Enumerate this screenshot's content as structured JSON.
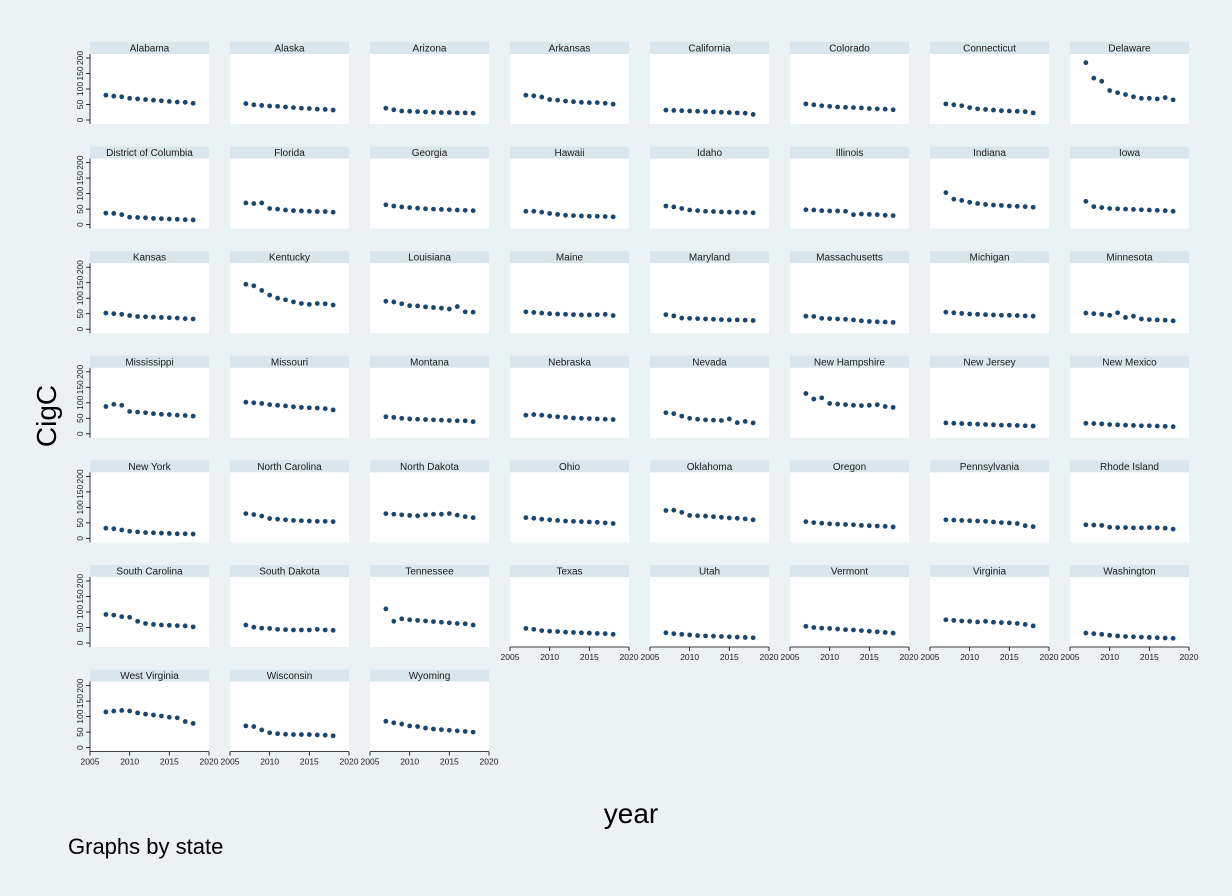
{
  "colors": {
    "background": "#eaf2f3",
    "panel_bg": "#ffffff",
    "title_strip": "#d9e6eb",
    "marker": "#1a476f",
    "axis": "#000000"
  },
  "chart_data": {
    "type": "scatter",
    "layout": "small-multiples",
    "columns": 8,
    "ylabel": "CigC",
    "xlabel": "year",
    "note": "Graphs by state",
    "x": [
      2007,
      2008,
      2009,
      2010,
      2011,
      2012,
      2013,
      2014,
      2015,
      2016,
      2017,
      2018
    ],
    "xlim": [
      2005,
      2020
    ],
    "xticks": [
      2005,
      2010,
      2015,
      2020
    ],
    "ylim": [
      0,
      200
    ],
    "yticks": [
      0,
      50,
      100,
      150,
      200
    ],
    "grid": false,
    "legend": "none",
    "series": [
      {
        "name": "Alabama",
        "values": [
          80,
          77,
          75,
          70,
          68,
          66,
          64,
          62,
          60,
          58,
          57,
          54
        ]
      },
      {
        "name": "Alaska",
        "values": [
          53,
          49,
          47,
          45,
          44,
          42,
          40,
          38,
          37,
          35,
          34,
          32
        ]
      },
      {
        "name": "Arizona",
        "values": [
          38,
          33,
          29,
          28,
          27,
          26,
          25,
          24,
          24,
          23,
          23,
          22
        ]
      },
      {
        "name": "Arkansas",
        "values": [
          80,
          78,
          74,
          66,
          64,
          61,
          59,
          57,
          56,
          56,
          54,
          51
        ]
      },
      {
        "name": "California",
        "values": [
          32,
          31,
          30,
          29,
          28,
          27,
          26,
          25,
          24,
          23,
          22,
          18
        ]
      },
      {
        "name": "Colorado",
        "values": [
          52,
          49,
          46,
          44,
          42,
          41,
          40,
          39,
          37,
          36,
          35,
          33
        ]
      },
      {
        "name": "Connecticut",
        "values": [
          52,
          49,
          46,
          40,
          36,
          34,
          32,
          30,
          29,
          28,
          27,
          23
        ]
      },
      {
        "name": "Delaware",
        "values": [
          185,
          135,
          125,
          95,
          88,
          82,
          75,
          70,
          70,
          68,
          72,
          65
        ]
      },
      {
        "name": "District of Columbia",
        "values": [
          37,
          36,
          32,
          24,
          23,
          22,
          20,
          19,
          18,
          17,
          16,
          15
        ]
      },
      {
        "name": "Florida",
        "values": [
          70,
          68,
          70,
          52,
          50,
          47,
          45,
          44,
          43,
          42,
          42,
          40
        ]
      },
      {
        "name": "Georgia",
        "values": [
          64,
          60,
          57,
          55,
          53,
          51,
          50,
          49,
          48,
          47,
          46,
          45
        ]
      },
      {
        "name": "Hawaii",
        "values": [
          43,
          43,
          40,
          36,
          33,
          30,
          29,
          28,
          27,
          27,
          26,
          25
        ]
      },
      {
        "name": "Idaho",
        "values": [
          60,
          57,
          52,
          47,
          45,
          43,
          42,
          41,
          40,
          40,
          39,
          38
        ]
      },
      {
        "name": "Illinois",
        "values": [
          48,
          47,
          45,
          44,
          44,
          43,
          32,
          34,
          33,
          32,
          30,
          29
        ]
      },
      {
        "name": "Indiana",
        "values": [
          103,
          82,
          78,
          72,
          68,
          65,
          63,
          62,
          60,
          59,
          58,
          56
        ]
      },
      {
        "name": "Iowa",
        "values": [
          75,
          58,
          55,
          52,
          51,
          50,
          49,
          48,
          47,
          46,
          45,
          43
        ]
      },
      {
        "name": "Kansas",
        "values": [
          52,
          50,
          48,
          44,
          41,
          40,
          39,
          38,
          37,
          36,
          34,
          33
        ]
      },
      {
        "name": "Kentucky",
        "values": [
          145,
          140,
          125,
          110,
          100,
          95,
          88,
          83,
          80,
          83,
          82,
          78
        ]
      },
      {
        "name": "Louisiana",
        "values": [
          90,
          88,
          82,
          76,
          75,
          72,
          70,
          68,
          65,
          73,
          56,
          55
        ]
      },
      {
        "name": "Maine",
        "values": [
          56,
          54,
          52,
          50,
          49,
          48,
          47,
          46,
          46,
          47,
          48,
          44
        ]
      },
      {
        "name": "Maryland",
        "values": [
          47,
          43,
          36,
          35,
          34,
          33,
          32,
          31,
          30,
          30,
          29,
          28
        ]
      },
      {
        "name": "Massachusetts",
        "values": [
          42,
          41,
          35,
          34,
          33,
          32,
          30,
          27,
          25,
          24,
          23,
          22
        ]
      },
      {
        "name": "Michigan",
        "values": [
          55,
          53,
          51,
          49,
          48,
          47,
          46,
          45,
          45,
          44,
          43,
          42
        ]
      },
      {
        "name": "Minnesota",
        "values": [
          52,
          50,
          48,
          45,
          53,
          38,
          42,
          33,
          31,
          30,
          29,
          27
        ]
      },
      {
        "name": "Mississippi",
        "values": [
          88,
          95,
          92,
          72,
          70,
          68,
          65,
          63,
          62,
          60,
          59,
          57
        ]
      },
      {
        "name": "Missouri",
        "values": [
          102,
          100,
          98,
          94,
          92,
          90,
          87,
          85,
          84,
          83,
          81,
          77
        ]
      },
      {
        "name": "Montana",
        "values": [
          55,
          53,
          50,
          48,
          47,
          46,
          45,
          44,
          43,
          42,
          42,
          39
        ]
      },
      {
        "name": "Nebraska",
        "values": [
          60,
          62,
          60,
          57,
          55,
          53,
          51,
          50,
          49,
          48,
          47,
          46
        ]
      },
      {
        "name": "Nevada",
        "values": [
          68,
          65,
          57,
          50,
          47,
          45,
          44,
          43,
          48,
          36,
          40,
          35
        ]
      },
      {
        "name": "New Hampshire",
        "values": [
          130,
          112,
          116,
          98,
          96,
          94,
          92,
          91,
          92,
          94,
          88,
          85
        ]
      },
      {
        "name": "New Jersey",
        "values": [
          35,
          34,
          33,
          32,
          31,
          30,
          29,
          28,
          28,
          27,
          26,
          25
        ]
      },
      {
        "name": "New Mexico",
        "values": [
          34,
          33,
          32,
          30,
          29,
          28,
          27,
          26,
          26,
          25,
          24,
          23
        ]
      },
      {
        "name": "New York",
        "values": [
          33,
          31,
          27,
          23,
          21,
          19,
          18,
          17,
          16,
          15,
          15,
          14
        ]
      },
      {
        "name": "North Carolina",
        "values": [
          80,
          77,
          72,
          64,
          62,
          60,
          58,
          57,
          56,
          55,
          55,
          54
        ]
      },
      {
        "name": "North Dakota",
        "values": [
          80,
          78,
          76,
          74,
          73,
          76,
          78,
          78,
          80,
          75,
          70,
          67
        ]
      },
      {
        "name": "Ohio",
        "values": [
          67,
          65,
          62,
          60,
          58,
          56,
          55,
          54,
          53,
          52,
          50,
          48
        ]
      },
      {
        "name": "Oklahoma",
        "values": [
          90,
          91,
          84,
          74,
          73,
          72,
          70,
          68,
          66,
          65,
          63,
          60
        ]
      },
      {
        "name": "Oregon",
        "values": [
          54,
          51,
          49,
          47,
          46,
          45,
          44,
          42,
          41,
          40,
          39,
          37
        ]
      },
      {
        "name": "Pennsylvania",
        "values": [
          60,
          59,
          58,
          57,
          56,
          55,
          53,
          51,
          50,
          48,
          41,
          38
        ]
      },
      {
        "name": "Rhode Island",
        "values": [
          44,
          43,
          42,
          36,
          35,
          35,
          34,
          34,
          35,
          34,
          33,
          30
        ]
      },
      {
        "name": "South Carolina",
        "values": [
          92,
          90,
          85,
          83,
          70,
          63,
          60,
          58,
          57,
          56,
          55,
          52
        ]
      },
      {
        "name": "South Dakota",
        "values": [
          58,
          51,
          48,
          47,
          44,
          43,
          42,
          42,
          42,
          44,
          42,
          41
        ]
      },
      {
        "name": "Tennessee",
        "values": [
          110,
          70,
          78,
          75,
          73,
          71,
          69,
          67,
          65,
          63,
          62,
          58
        ]
      },
      {
        "name": "Texas",
        "values": [
          47,
          44,
          40,
          38,
          37,
          35,
          34,
          33,
          32,
          31,
          30,
          28
        ]
      },
      {
        "name": "Utah",
        "values": [
          33,
          30,
          28,
          26,
          24,
          23,
          22,
          21,
          20,
          19,
          18,
          17
        ]
      },
      {
        "name": "Vermont",
        "values": [
          54,
          50,
          48,
          47,
          45,
          43,
          42,
          40,
          38,
          36,
          34,
          32
        ]
      },
      {
        "name": "Virginia",
        "values": [
          75,
          73,
          71,
          70,
          68,
          70,
          67,
          66,
          65,
          63,
          60,
          55
        ]
      },
      {
        "name": "Washington",
        "values": [
          32,
          30,
          28,
          25,
          23,
          21,
          20,
          19,
          18,
          17,
          16,
          15
        ]
      },
      {
        "name": "West Virginia",
        "values": [
          115,
          118,
          120,
          118,
          112,
          108,
          105,
          102,
          98,
          96,
          84,
          78
        ]
      },
      {
        "name": "Wisconsin",
        "values": [
          70,
          68,
          57,
          48,
          45,
          43,
          42,
          42,
          42,
          41,
          40,
          38
        ]
      },
      {
        "name": "Wyoming",
        "values": [
          85,
          80,
          76,
          70,
          68,
          63,
          60,
          58,
          56,
          54,
          52,
          50
        ]
      }
    ]
  }
}
